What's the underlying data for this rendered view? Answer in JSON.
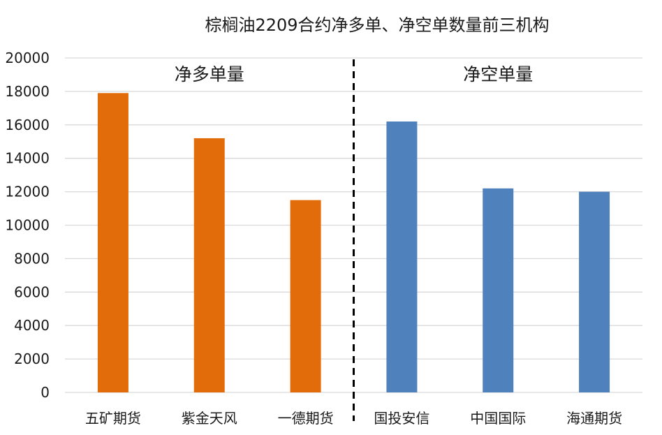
{
  "chart_data": {
    "type": "bar",
    "title": "棕榈油2209合约净多单、净空单数量前三机构",
    "categories": [
      "五矿期货",
      "紫金天风",
      "一德期货",
      "国投安信",
      "中国国际",
      "海通期货"
    ],
    "values": [
      17900,
      15200,
      11500,
      16200,
      12200,
      12000
    ],
    "series": [
      {
        "name": "净多单量",
        "values": [
          17900,
          15200,
          11500,
          null,
          null,
          null
        ],
        "color": "#e36c0a"
      },
      {
        "name": "净空单量",
        "values": [
          null,
          null,
          null,
          16200,
          12200,
          12000
        ],
        "color": "#4f81bd"
      }
    ],
    "groups": [
      {
        "label": "净多单量",
        "range": [
          0,
          2
        ]
      },
      {
        "label": "净空单量",
        "range": [
          3,
          5
        ]
      }
    ],
    "xlabel": "",
    "ylabel": "",
    "ylim": [
      0,
      20000
    ],
    "yticks": [
      "0",
      "2000",
      "4000",
      "6000",
      "8000",
      "10000",
      "12000",
      "14000",
      "16000",
      "18000",
      "20000"
    ],
    "grid": true,
    "divider": "dashed line between 一德期货 and 国投安信"
  }
}
